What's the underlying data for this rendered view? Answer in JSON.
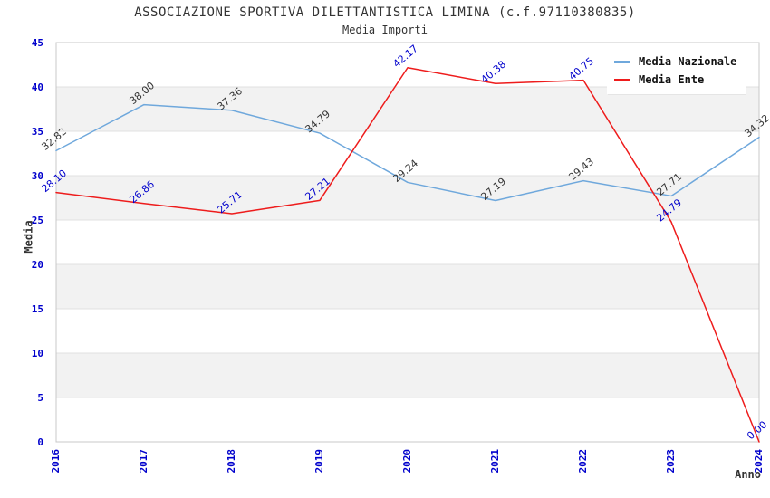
{
  "header": {
    "title": "ASSOCIAZIONE SPORTIVA DILETTANTISTICA LIMINA (c.f.97110380835)",
    "subtitle": "Media Importi"
  },
  "chart_data": {
    "type": "line",
    "title": "ASSOCIAZIONE SPORTIVA DILETTANTISTICA LIMINA (c.f.97110380835)",
    "subtitle": "Media Importi",
    "xlabel": "Anno",
    "ylabel": "Media",
    "x": [
      2016,
      2017,
      2018,
      2019,
      2020,
      2021,
      2022,
      2023,
      2024
    ],
    "series": [
      {
        "name": "Media Nazionale",
        "color": "#6fa8dc",
        "label_color": "#333333",
        "values": [
          32.82,
          38.0,
          37.36,
          34.79,
          29.24,
          27.19,
          29.43,
          27.71,
          34.32
        ]
      },
      {
        "name": "Media Ente",
        "color": "#ee1c1c",
        "label_color": "#0000cc",
        "values": [
          28.1,
          26.86,
          25.71,
          27.21,
          42.17,
          40.38,
          40.75,
          24.79,
          0.0
        ]
      }
    ],
    "ylim": [
      0,
      45
    ],
    "ytick_step": 5,
    "grid": true,
    "legend_position": "top-right",
    "colors": {
      "tick_label": "#0000cc",
      "band_gray": "#f2f2f2",
      "gridline": "#e0e0e0",
      "plot_border": "#c8c8c8",
      "text_dark": "#333333"
    }
  }
}
